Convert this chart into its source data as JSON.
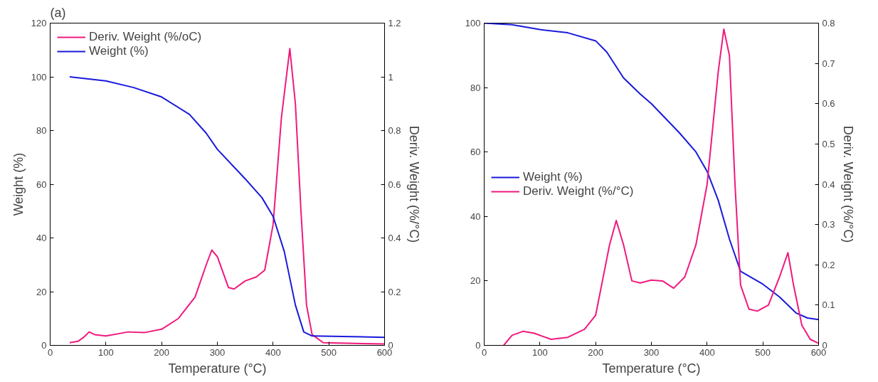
{
  "chart_data": [
    {
      "type": "line",
      "annotations": [
        "(a)"
      ],
      "xlabel": "Temperature (°C)",
      "ylabel": "Weight (%)",
      "y2label": "Deriv. Weight (%/°C)",
      "xlim": [
        0,
        600
      ],
      "xticks": [
        0,
        100,
        200,
        300,
        400,
        500,
        600
      ],
      "ylim": [
        0,
        120
      ],
      "yticks": [
        0,
        20,
        40,
        60,
        80,
        100,
        120
      ],
      "y2lim": [
        0,
        1.2
      ],
      "y2ticks": [
        0,
        0.2,
        0.4,
        0.6,
        0.8,
        1,
        1.2
      ],
      "grid": false,
      "legend": "top left",
      "marker": "none",
      "line_style": "solid",
      "series": [
        {
          "name": "Deriv. Weight (%/oC)",
          "color": "#f0197d",
          "axis": "y2",
          "x": [
            35,
            50,
            60,
            70,
            80,
            100,
            140,
            170,
            200,
            230,
            260,
            280,
            290,
            300,
            320,
            330,
            350,
            370,
            385,
            400,
            415,
            430,
            440,
            450,
            460,
            470,
            490,
            600
          ],
          "values": [
            0.01,
            0.015,
            0.03,
            0.05,
            0.04,
            0.035,
            0.05,
            0.048,
            0.06,
            0.1,
            0.18,
            0.3,
            0.355,
            0.33,
            0.215,
            0.21,
            0.24,
            0.255,
            0.28,
            0.45,
            0.85,
            1.105,
            0.9,
            0.5,
            0.15,
            0.04,
            0.01,
            0.005
          ]
        },
        {
          "name": "Weight (%)",
          "color": "#1a1adc",
          "x": [
            35,
            100,
            150,
            200,
            250,
            280,
            300,
            350,
            380,
            400,
            420,
            440,
            455,
            470,
            600
          ],
          "values": [
            100,
            98.5,
            96,
            92.5,
            86,
            79,
            73,
            62,
            55,
            48,
            35,
            15,
            5,
            3.5,
            3
          ]
        }
      ]
    },
    {
      "type": "line",
      "xlabel": "Temperature (°C)",
      "y2label": "Deriv. Weight (%/°C)",
      "xlim": [
        0,
        600
      ],
      "xticks": [
        0,
        100,
        200,
        300,
        400,
        500,
        600
      ],
      "ylim": [
        0,
        100
      ],
      "yticks": [
        0,
        20,
        40,
        60,
        80,
        100
      ],
      "y2lim": [
        0,
        0.8
      ],
      "y2ticks": [
        0,
        0.1,
        0.2,
        0.3,
        0.4,
        0.5,
        0.6,
        0.7,
        0.8
      ],
      "grid": false,
      "legend": "left",
      "marker": "none",
      "line_style": "solid",
      "series": [
        {
          "name": "Weight (%)",
          "color": "#1a1adc",
          "x": [
            0,
            50,
            100,
            150,
            200,
            220,
            250,
            280,
            300,
            350,
            380,
            400,
            420,
            440,
            460,
            500,
            530,
            560,
            580,
            600
          ],
          "values": [
            100,
            99.5,
            98,
            97,
            94.5,
            91,
            83,
            78,
            75,
            66,
            60,
            54,
            45,
            33,
            23,
            19,
            15,
            10,
            8.5,
            8
          ]
        },
        {
          "name": "Deriv. Weight (%/°C)",
          "color": "#f0197d",
          "axis": "y2",
          "x": [
            35,
            50,
            70,
            90,
            120,
            150,
            180,
            200,
            215,
            225,
            237,
            250,
            265,
            280,
            300,
            320,
            340,
            360,
            380,
            400,
            420,
            430,
            440,
            450,
            460,
            475,
            490,
            510,
            530,
            545,
            555,
            570,
            585,
            600
          ],
          "values": [
            0,
            0.025,
            0.035,
            0.03,
            0.015,
            0.02,
            0.04,
            0.075,
            0.18,
            0.25,
            0.31,
            0.25,
            0.16,
            0.155,
            0.162,
            0.16,
            0.142,
            0.17,
            0.25,
            0.4,
            0.68,
            0.785,
            0.72,
            0.4,
            0.15,
            0.09,
            0.085,
            0.1,
            0.17,
            0.23,
            0.15,
            0.05,
            0.015,
            0.005
          ]
        }
      ]
    }
  ]
}
